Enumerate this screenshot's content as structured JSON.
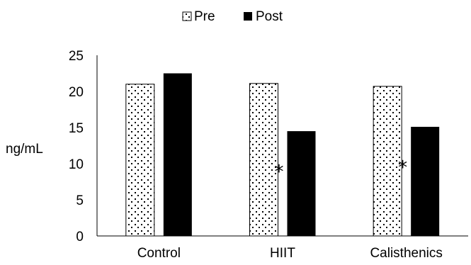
{
  "chart_data": {
    "type": "bar",
    "title": "",
    "xlabel": "",
    "ylabel": "ng/mL",
    "ylim": [
      0,
      25
    ],
    "yticks": [
      0,
      5,
      10,
      15,
      20,
      25
    ],
    "grid": false,
    "legend_position": "top-center",
    "categories": [
      "Control",
      "HIIT",
      "Calisthenics"
    ],
    "series": [
      {
        "name": "Pre",
        "values": [
          21.0,
          21.1,
          20.7
        ],
        "fill": "dotted-pattern"
      },
      {
        "name": "Post",
        "values": [
          22.5,
          14.5,
          15.1
        ],
        "fill": "#000000"
      }
    ],
    "annotations": [
      {
        "category": "HIIT",
        "text": "*"
      },
      {
        "category": "Calisthenics",
        "text": "*"
      }
    ]
  }
}
